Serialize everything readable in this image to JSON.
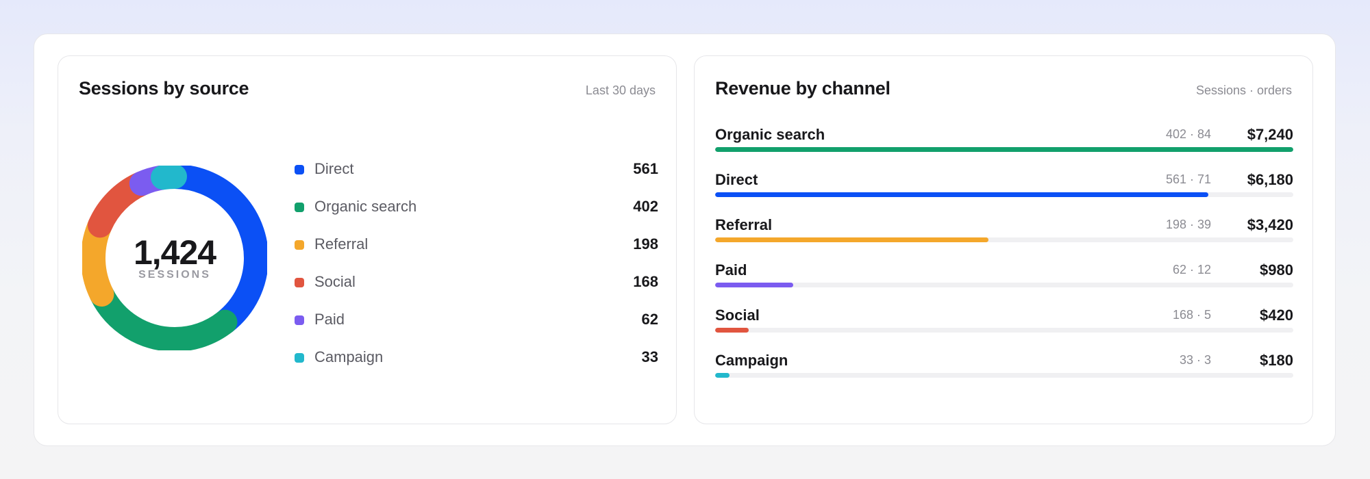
{
  "sessions_card": {
    "title": "Sessions by source",
    "period": "Last 30 days",
    "total": "1,424",
    "total_caption": "SESSIONS",
    "sources": [
      {
        "label": "Direct",
        "value": 561,
        "color": "#0b50f5"
      },
      {
        "label": "Organic search",
        "value": 402,
        "color": "#12a06c"
      },
      {
        "label": "Referral",
        "value": 198,
        "color": "#f4a72b"
      },
      {
        "label": "Social",
        "value": 168,
        "color": "#e1553f"
      },
      {
        "label": "Paid",
        "value": 62,
        "color": "#7b5cf0"
      },
      {
        "label": "Campaign",
        "value": 33,
        "color": "#22b8cc"
      }
    ]
  },
  "revenue_card": {
    "title": "Revenue by channel",
    "meta_label": "Sessions · orders",
    "channels": [
      {
        "name": "Organic search",
        "meta": "402 · 84",
        "amount": "$7,240",
        "revenue": 7240,
        "color": "#12a06c"
      },
      {
        "name": "Direct",
        "meta": "561 · 71",
        "amount": "$6,180",
        "revenue": 6180,
        "color": "#0b50f5"
      },
      {
        "name": "Referral",
        "meta": "198 · 39",
        "amount": "$3,420",
        "revenue": 3420,
        "color": "#f4a72b"
      },
      {
        "name": "Paid",
        "meta": "62 · 12",
        "amount": "$980",
        "revenue": 980,
        "color": "#7b5cf0"
      },
      {
        "name": "Social",
        "meta": "168 · 5",
        "amount": "$420",
        "revenue": 420,
        "color": "#e1553f"
      },
      {
        "name": "Campaign",
        "meta": "33 · 3",
        "amount": "$180",
        "revenue": 180,
        "color": "#22b8cc"
      }
    ]
  }
}
